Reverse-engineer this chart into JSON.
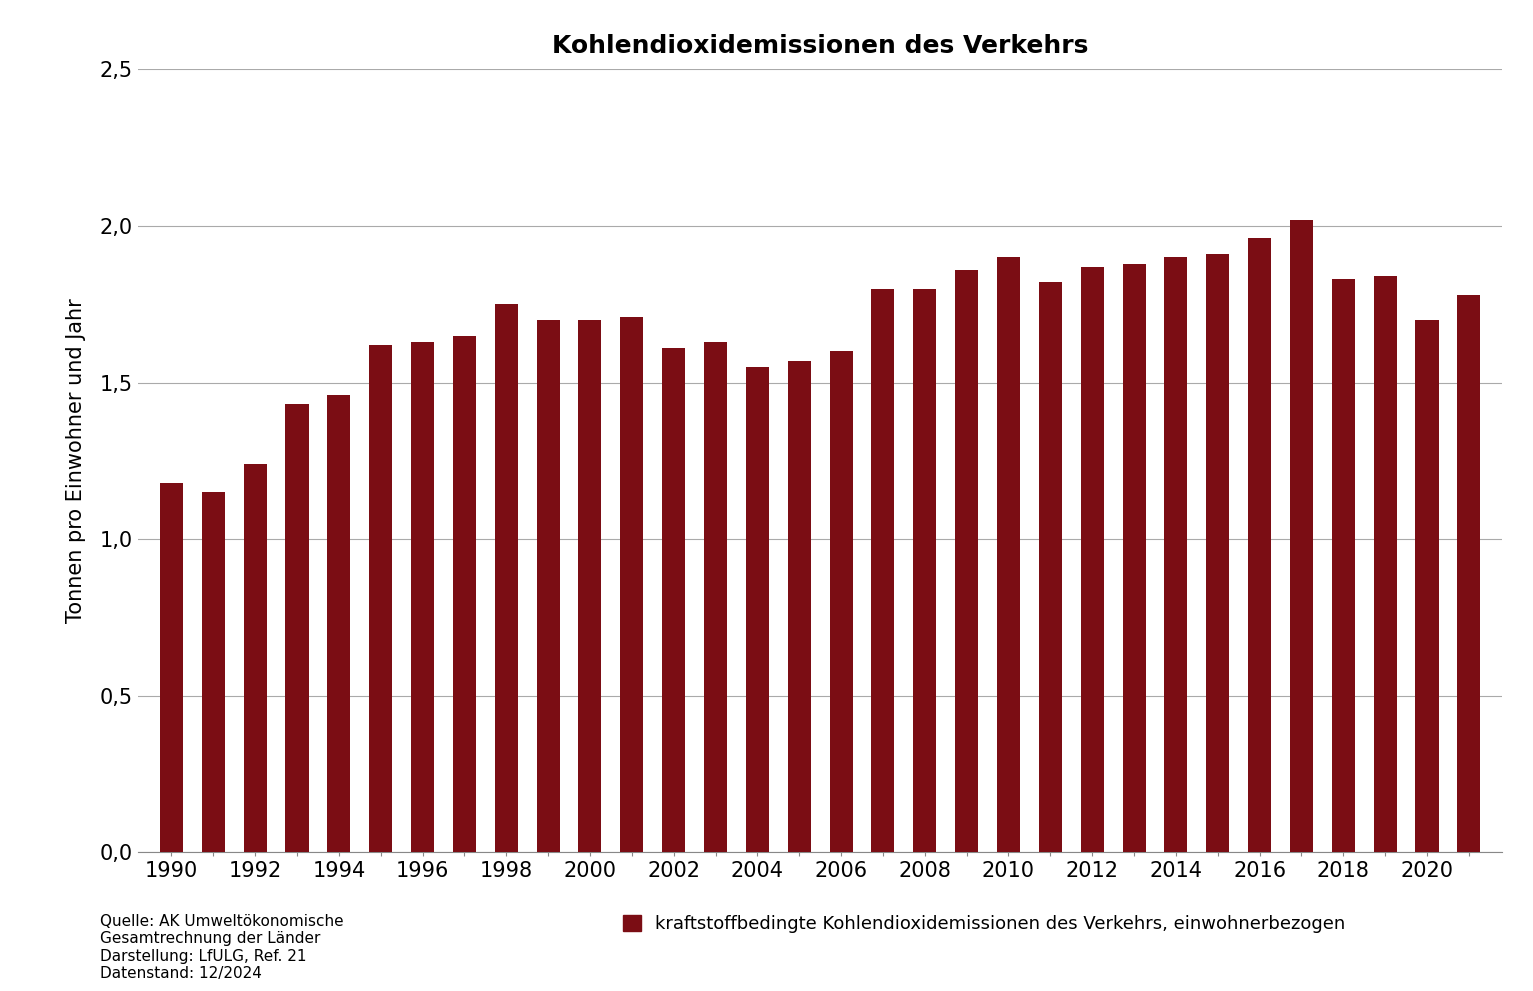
{
  "title": "Kohlendioxidemissionen des Verkehrs",
  "ylabel": "Tonnen pro Einwohner und Jahr",
  "bar_color": "#7B0D14",
  "years": [
    1990,
    1991,
    1992,
    1993,
    1994,
    1995,
    1996,
    1997,
    1998,
    1999,
    2000,
    2001,
    2002,
    2003,
    2004,
    2005,
    2006,
    2007,
    2008,
    2009,
    2010,
    2011,
    2012,
    2013,
    2014,
    2015,
    2016,
    2017,
    2018,
    2019,
    2020,
    2021
  ],
  "values": [
    1.18,
    1.15,
    1.24,
    1.43,
    1.46,
    1.62,
    1.63,
    1.65,
    1.75,
    1.7,
    1.7,
    1.71,
    1.61,
    1.63,
    1.55,
    1.57,
    1.6,
    1.8,
    1.8,
    1.86,
    1.9,
    1.82,
    1.87,
    1.88,
    1.9,
    1.91,
    1.96,
    2.02,
    1.83,
    1.84,
    1.7,
    1.78
  ],
  "ylim": [
    0,
    2.5
  ],
  "yticks": [
    0.0,
    0.5,
    1.0,
    1.5,
    2.0,
    2.5
  ],
  "ytick_labels": [
    "0,0",
    "0,5",
    "1,0",
    "1,5",
    "2,0",
    "2,5"
  ],
  "grid_color": "#AAAAAA",
  "background_color": "#FFFFFF",
  "legend_label": "kraftstoffbedingte Kohlendioxidemissionen des Verkehrs, einwohnerbezogen",
  "source_text": "Quelle: AK Umweltökonomische\nGesamtrechnung der Länder\nDarstellung: LfULG, Ref. 21\nDatenstand: 12/2024",
  "bar_width": 0.55,
  "title_fontsize": 18,
  "axis_fontsize": 15,
  "legend_fontsize": 13,
  "source_fontsize": 11
}
